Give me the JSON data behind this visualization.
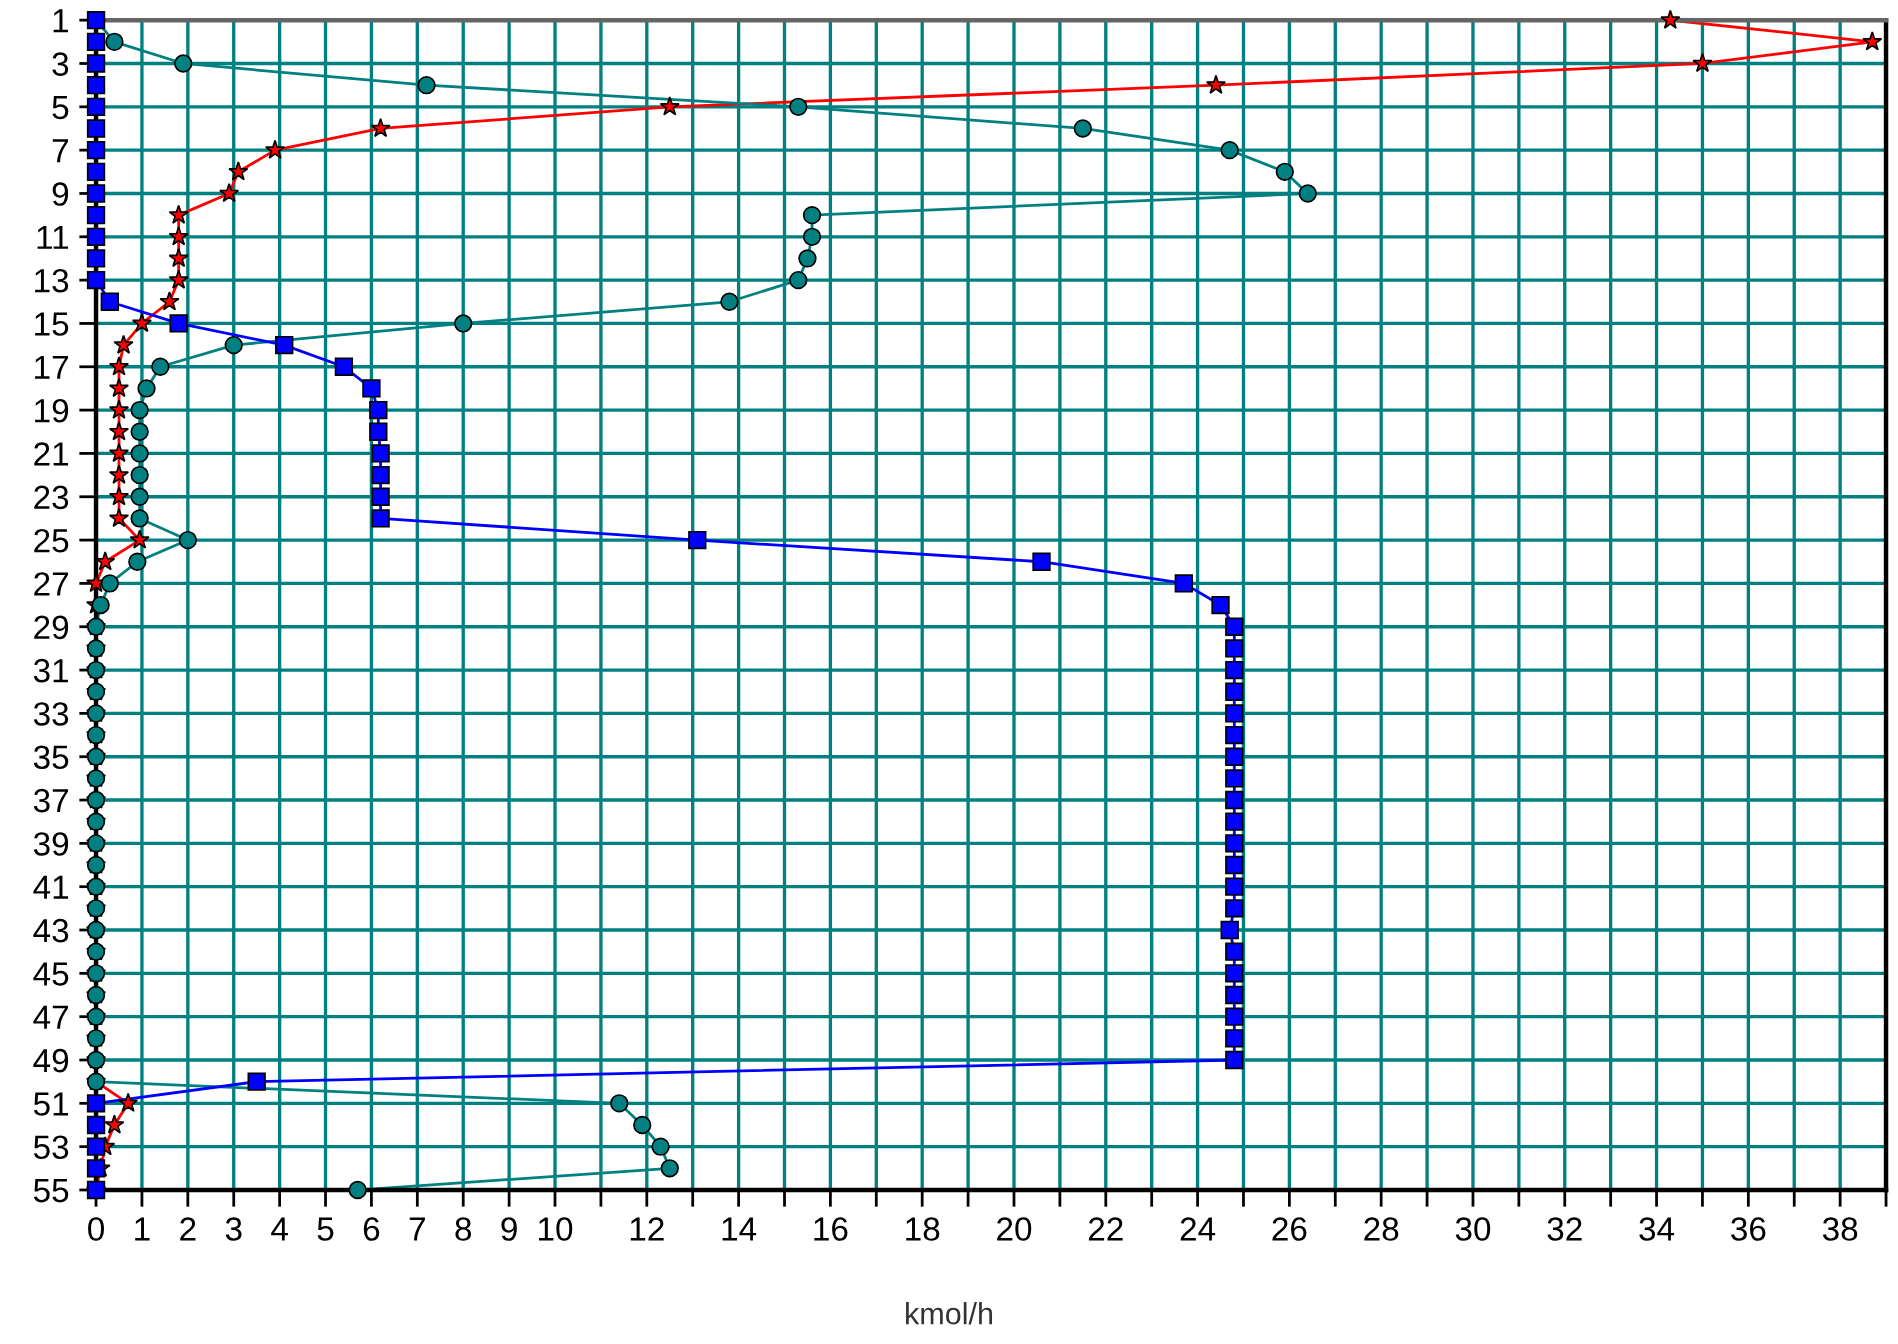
{
  "chart_data": {
    "type": "line",
    "xlabel": "kmol/h",
    "orientation": "horizontal",
    "categories": [
      "1",
      null,
      "3",
      null,
      "5",
      null,
      "7",
      null,
      "9",
      null,
      "11",
      null,
      "13",
      null,
      "15",
      null,
      "17",
      null,
      "19",
      null,
      "21",
      null,
      "23",
      null,
      "25",
      null,
      "27",
      null,
      "29",
      null,
      "31",
      null,
      "33",
      null,
      "35",
      null,
      "37",
      null,
      "39",
      null,
      "41",
      null,
      "43",
      null,
      "45",
      null,
      "47",
      null,
      "49",
      null,
      "51",
      null,
      "53",
      null,
      "55"
    ],
    "series": [
      {
        "color": "#ff0000",
        "marker": "star",
        "values": [
          34.3,
          38.7,
          35.0,
          24.4,
          12.5,
          6.2,
          3.9,
          3.1,
          2.9,
          1.8,
          1.8,
          1.8,
          1.8,
          1.6,
          1.0,
          0.6,
          0.5,
          0.5,
          0.5,
          0.5,
          0.5,
          0.5,
          0.5,
          0.5,
          0.95,
          0.2,
          0,
          0,
          0,
          0,
          0,
          0,
          0,
          0,
          0,
          0,
          0,
          0,
          0,
          0,
          0,
          0,
          0,
          0,
          0,
          0,
          0,
          0,
          0,
          0,
          0.7,
          0.4,
          0.2,
          0.1,
          0
        ]
      },
      {
        "color": "#008080",
        "marker": "circle",
        "values": [
          0,
          0.4,
          1.9,
          7.2,
          15.3,
          21.5,
          24.7,
          25.9,
          26.4,
          15.6,
          15.6,
          15.5,
          15.3,
          13.8,
          8.0,
          3.0,
          1.4,
          1.1,
          0.95,
          0.95,
          0.95,
          0.95,
          0.95,
          0.95,
          2.0,
          0.9,
          0.3,
          0.1,
          0,
          0,
          0,
          0,
          0,
          0,
          0,
          0,
          0,
          0,
          0,
          0,
          0,
          0,
          0,
          0,
          0,
          0,
          0,
          0,
          0,
          0,
          11.4,
          11.9,
          12.3,
          12.5,
          5.7
        ]
      },
      {
        "color": "#0000ff",
        "marker": "square",
        "values": [
          0,
          0,
          0,
          0,
          0,
          0,
          0,
          0,
          0,
          0,
          0,
          0,
          0,
          0.3,
          1.8,
          4.1,
          5.4,
          6.0,
          6.15,
          6.15,
          6.2,
          6.2,
          6.2,
          6.2,
          13.1,
          20.6,
          23.7,
          24.5,
          24.8,
          24.8,
          24.8,
          24.8,
          24.8,
          24.8,
          24.8,
          24.8,
          24.8,
          24.8,
          24.8,
          24.8,
          24.8,
          24.8,
          24.7,
          24.8,
          24.8,
          24.8,
          24.8,
          24.8,
          24.8,
          3.5,
          0,
          0,
          0,
          0,
          0
        ]
      }
    ],
    "xlim": [
      0,
      39
    ],
    "xticks": [
      0,
      1,
      2,
      3,
      4,
      5,
      6,
      7,
      8,
      9,
      10,
      {
        "value": 11,
        "label": null
      },
      12,
      {
        "value": 13,
        "label": null
      },
      14,
      {
        "value": 15,
        "label": null
      },
      16,
      {
        "value": 17,
        "label": null
      },
      18,
      {
        "value": 19,
        "label": null
      },
      20,
      {
        "value": 21,
        "label": null
      },
      22,
      {
        "value": 23,
        "label": null
      },
      24,
      {
        "value": 25,
        "label": null
      },
      26,
      {
        "value": 27,
        "label": null
      },
      28,
      {
        "value": 29,
        "label": null
      },
      30,
      {
        "value": 31,
        "label": null
      },
      32,
      {
        "value": 33,
        "label": null
      },
      34,
      {
        "value": 35,
        "label": null
      },
      36,
      {
        "value": 37,
        "label": null
      },
      38,
      {
        "value": 39,
        "label": null
      }
    ],
    "grid": true,
    "line_style": "solid"
  }
}
